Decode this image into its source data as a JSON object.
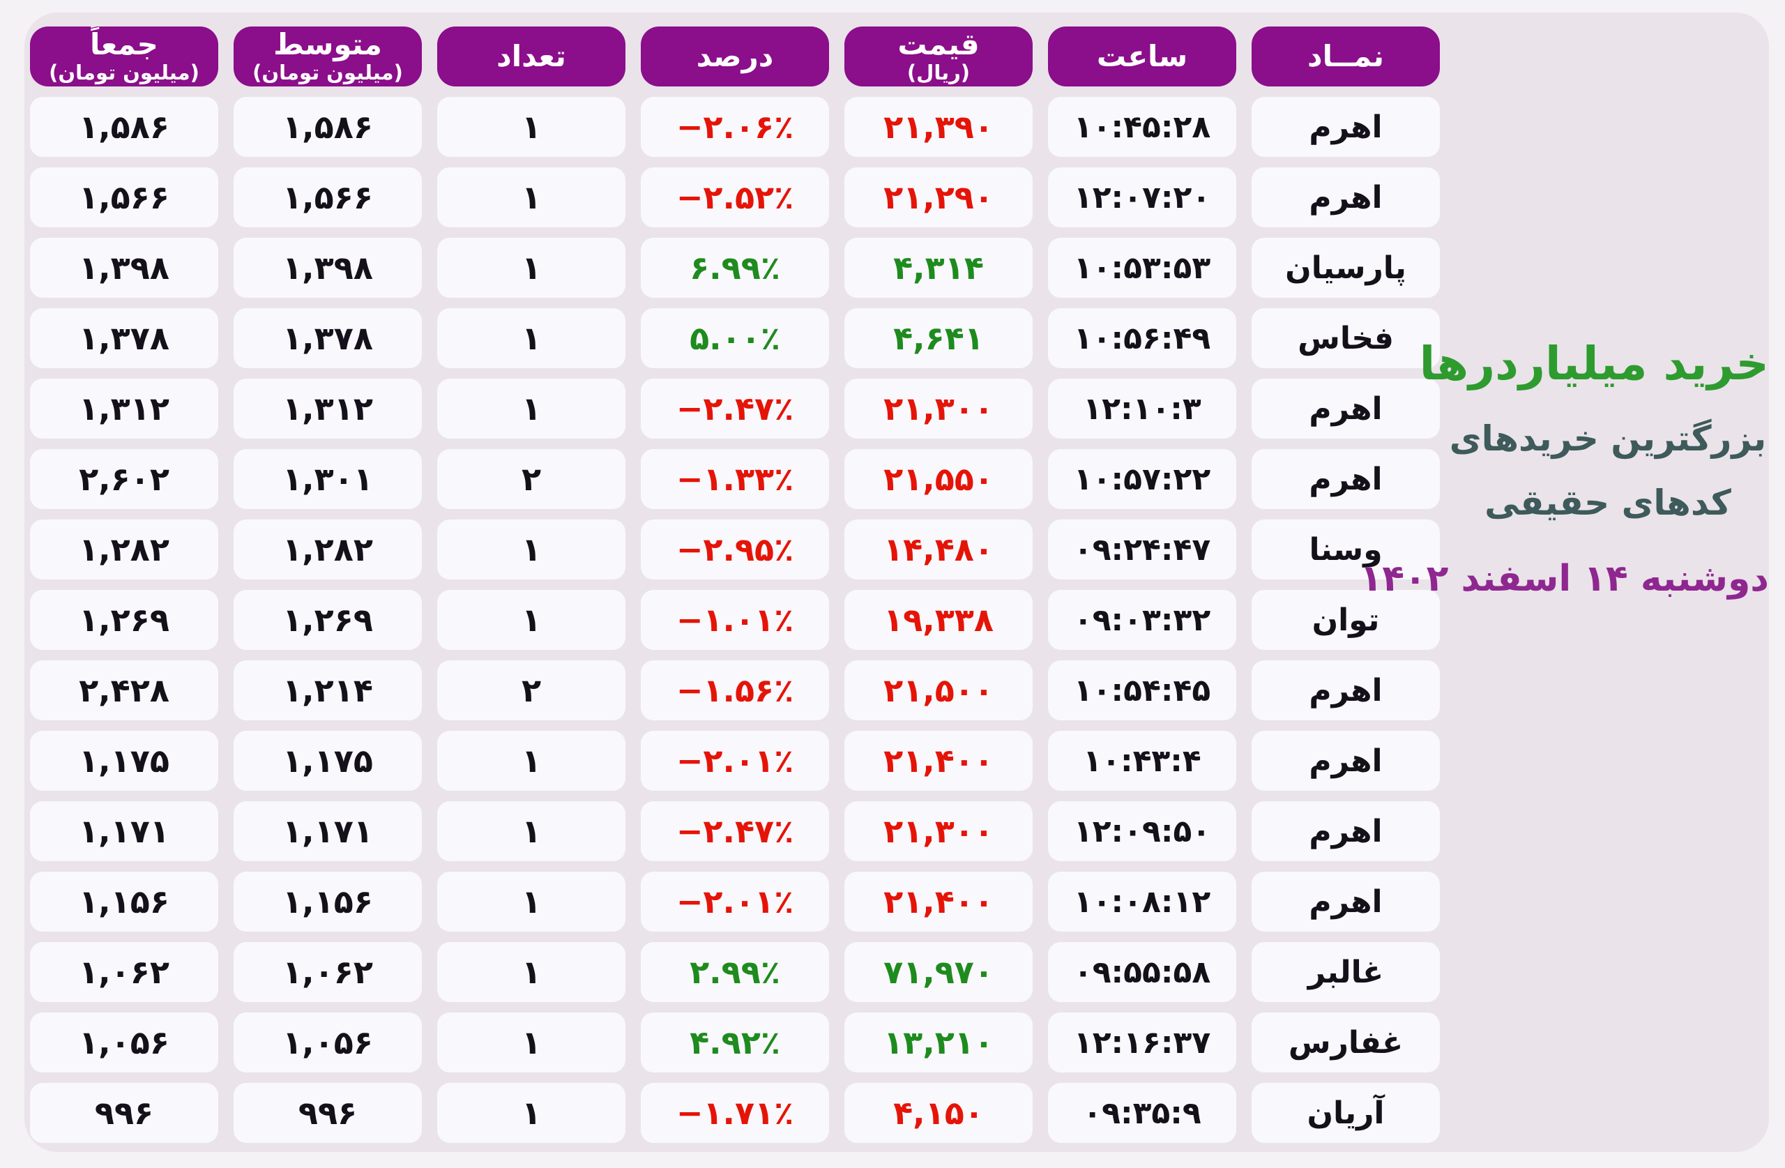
{
  "title_panel": {
    "main_title": "خرید میلیاردرها",
    "subtitle_line1": "بزرگترین خریدهای",
    "subtitle_line2": "کدهای حقیقی",
    "date_line": "دوشنبه ۱۴ اسفند ۱۴۰۲"
  },
  "table": {
    "headers": [
      {
        "label": "نمــاد",
        "sub": ""
      },
      {
        "label": "ساعت",
        "sub": ""
      },
      {
        "label": "قیمت",
        "sub": "(ریال)"
      },
      {
        "label": "درصد",
        "sub": ""
      },
      {
        "label": "تعداد",
        "sub": ""
      },
      {
        "label": "متوسط",
        "sub": "(میلیون تومان)"
      },
      {
        "label": "جمعاً",
        "sub": "(میلیون تومان)"
      }
    ],
    "rows": [
      {
        "symbol": "اهرم",
        "time": "۱۰:۴۵:۲۸",
        "price": "۲۱,۳۹۰",
        "percent": "−۲.۰۶٪",
        "count": "۱",
        "average": "۱,۵۸۶",
        "total": "۱,۵۸۶",
        "trend": "down"
      },
      {
        "symbol": "اهرم",
        "time": "۱۲:۰۷:۲۰",
        "price": "۲۱,۲۹۰",
        "percent": "−۲.۵۲٪",
        "count": "۱",
        "average": "۱,۵۶۶",
        "total": "۱,۵۶۶",
        "trend": "down"
      },
      {
        "symbol": "پارسیان",
        "time": "۱۰:۵۳:۵۳",
        "price": "۴,۳۱۴",
        "percent": "۶.۹۹٪",
        "count": "۱",
        "average": "۱,۳۹۸",
        "total": "۱,۳۹۸",
        "trend": "up"
      },
      {
        "symbol": "فخاس",
        "time": "۱۰:۵۶:۴۹",
        "price": "۴,۶۴۱",
        "percent": "۵.۰۰٪",
        "count": "۱",
        "average": "۱,۳۷۸",
        "total": "۱,۳۷۸",
        "trend": "up"
      },
      {
        "symbol": "اهرم",
        "time": "۱۲:۱۰:۳",
        "price": "۲۱,۳۰۰",
        "percent": "−۲.۴۷٪",
        "count": "۱",
        "average": "۱,۳۱۲",
        "total": "۱,۳۱۲",
        "trend": "down"
      },
      {
        "symbol": "اهرم",
        "time": "۱۰:۵۷:۲۲",
        "price": "۲۱,۵۵۰",
        "percent": "−۱.۳۳٪",
        "count": "۲",
        "average": "۱,۳۰۱",
        "total": "۲,۶۰۲",
        "trend": "down"
      },
      {
        "symbol": "وسنا",
        "time": "۰۹:۲۴:۴۷",
        "price": "۱۴,۴۸۰",
        "percent": "−۲.۹۵٪",
        "count": "۱",
        "average": "۱,۲۸۲",
        "total": "۱,۲۸۲",
        "trend": "down"
      },
      {
        "symbol": "توان",
        "time": "۰۹:۰۳:۳۲",
        "price": "۱۹,۳۳۸",
        "percent": "−۱.۰۱٪",
        "count": "۱",
        "average": "۱,۲۶۹",
        "total": "۱,۲۶۹",
        "trend": "down"
      },
      {
        "symbol": "اهرم",
        "time": "۱۰:۵۴:۴۵",
        "price": "۲۱,۵۰۰",
        "percent": "−۱.۵۶٪",
        "count": "۲",
        "average": "۱,۲۱۴",
        "total": "۲,۴۲۸",
        "trend": "down"
      },
      {
        "symbol": "اهرم",
        "time": "۱۰:۴۳:۴",
        "price": "۲۱,۴۰۰",
        "percent": "−۲.۰۱٪",
        "count": "۱",
        "average": "۱,۱۷۵",
        "total": "۱,۱۷۵",
        "trend": "down"
      },
      {
        "symbol": "اهرم",
        "time": "۱۲:۰۹:۵۰",
        "price": "۲۱,۳۰۰",
        "percent": "−۲.۴۷٪",
        "count": "۱",
        "average": "۱,۱۷۱",
        "total": "۱,۱۷۱",
        "trend": "down"
      },
      {
        "symbol": "اهرم",
        "time": "۱۰:۰۸:۱۲",
        "price": "۲۱,۴۰۰",
        "percent": "−۲.۰۱٪",
        "count": "۱",
        "average": "۱,۱۵۶",
        "total": "۱,۱۵۶",
        "trend": "down"
      },
      {
        "symbol": "غالبر",
        "time": "۰۹:۵۵:۵۸",
        "price": "۷۱,۹۷۰",
        "percent": "۲.۹۹٪",
        "count": "۱",
        "average": "۱,۰۶۲",
        "total": "۱,۰۶۲",
        "trend": "up"
      },
      {
        "symbol": "غفارس",
        "time": "۱۲:۱۶:۳۷",
        "price": "۱۳,۲۱۰",
        "percent": "۴.۹۲٪",
        "count": "۱",
        "average": "۱,۰۵۶",
        "total": "۱,۰۵۶",
        "trend": "up"
      },
      {
        "symbol": "آریان",
        "time": "۰۹:۳۵:۹",
        "price": "۴,۱۵۰",
        "percent": "−۱.۷۱٪",
        "count": "۱",
        "average": "۹۹۶",
        "total": "۹۹۶",
        "trend": "down"
      }
    ]
  },
  "colors": {
    "page_bg": "#f4f2f4",
    "board_bg": "#eae3ea",
    "cell_bg": "#f9f8fc",
    "header_bg": "#8b0e8b",
    "header_text": "#ffffff",
    "text_dark": "#14111a",
    "negative_red": "#e51408",
    "positive_green": "#1e8b1e",
    "title_green": "#2e9b2e",
    "subtitle_color": "#3e5a5a",
    "date_purple": "#8f2790"
  },
  "chart_data": {
    "type": "table",
    "title": "خرید میلیاردرها",
    "subtitle": [
      "بزرگترین خریدهای",
      "کدهای حقیقی"
    ],
    "date": "دوشنبه ۱۴ اسفند ۱۴۰۲",
    "columns": [
      "نماد",
      "ساعت",
      "قیمت (ریال)",
      "درصد",
      "تعداد",
      "متوسط (میلیون تومان)",
      "جمعاً (میلیون تومان)"
    ],
    "rows": [
      [
        "اهرم",
        "10:45:28",
        21390,
        -2.06,
        1,
        1586,
        1586
      ],
      [
        "اهرم",
        "12:07:20",
        21290,
        -2.52,
        1,
        1566,
        1566
      ],
      [
        "پارسیان",
        "10:53:53",
        4314,
        6.99,
        1,
        1398,
        1398
      ],
      [
        "فخاس",
        "10:56:49",
        4641,
        5.0,
        1,
        1378,
        1378
      ],
      [
        "اهرم",
        "12:10:3",
        21300,
        -2.47,
        1,
        1312,
        1312
      ],
      [
        "اهرم",
        "10:57:22",
        21550,
        -1.33,
        2,
        1301,
        2602
      ],
      [
        "وسنا",
        "09:24:47",
        14480,
        -2.95,
        1,
        1282,
        1282
      ],
      [
        "توان",
        "09:03:32",
        19338,
        -1.01,
        1,
        1269,
        1269
      ],
      [
        "اهرم",
        "10:54:45",
        21500,
        -1.56,
        2,
        1214,
        2428
      ],
      [
        "اهرم",
        "10:43:4",
        21400,
        -2.01,
        1,
        1175,
        1175
      ],
      [
        "اهرم",
        "12:09:50",
        21300,
        -2.47,
        1,
        1171,
        1171
      ],
      [
        "اهرم",
        "10:08:12",
        21400,
        -2.01,
        1,
        1156,
        1156
      ],
      [
        "غالبر",
        "09:55:58",
        71970,
        2.99,
        1,
        1062,
        1062
      ],
      [
        "غفارس",
        "12:16:37",
        13210,
        4.92,
        1,
        1056,
        1056
      ],
      [
        "آریان",
        "09:35:9",
        4150,
        -1.71,
        1,
        996,
        996
      ]
    ],
    "legend_position": "none",
    "grid": false
  }
}
